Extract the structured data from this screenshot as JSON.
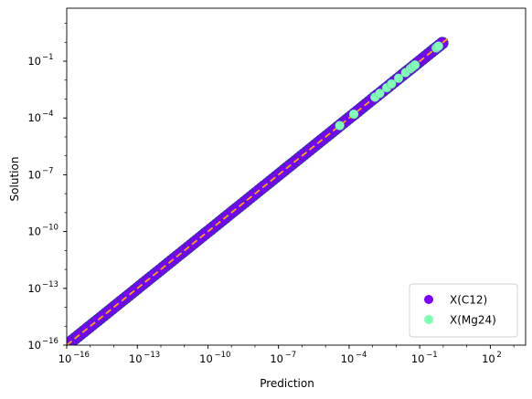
{
  "chart_data": {
    "type": "scatter",
    "xlabel": "Prediction",
    "ylabel": "Solution",
    "xscale": "log",
    "yscale": "log",
    "xlim_exp": [
      -16,
      3.5
    ],
    "ylim_exp": [
      -16,
      1.8
    ],
    "x_ticks": [
      {
        "exp": -16,
        "label": "−16"
      },
      {
        "exp": -13,
        "label": "−13"
      },
      {
        "exp": -10,
        "label": "−10"
      },
      {
        "exp": -7,
        "label": "−7"
      },
      {
        "exp": -4,
        "label": "−4"
      },
      {
        "exp": -1,
        "label": "−1"
      },
      {
        "exp": 2,
        "label": "2"
      }
    ],
    "y_ticks": [
      {
        "exp": -16,
        "label": "−16"
      },
      {
        "exp": -13,
        "label": "−13"
      },
      {
        "exp": -10,
        "label": "−10"
      },
      {
        "exp": -7,
        "label": "−7"
      },
      {
        "exp": -4,
        "label": "−4"
      },
      {
        "exp": -1,
        "label": "−1"
      }
    ],
    "tick_base": "10",
    "grid": false,
    "legend_position": "lower-right",
    "reference_line": {
      "style": "dashed",
      "color": "#ffa500",
      "from_exp": -16,
      "to_exp": 0.3
    },
    "series": [
      {
        "name": "X(C12)",
        "color": "#7f00ff",
        "x_exp_range": [
          -16,
          0.0
        ],
        "marker": "circle"
      },
      {
        "name": "X(Mg24)",
        "color": "#80ffb4",
        "marker": "circle",
        "points_exp": [
          [
            -4.4,
            -4.4
          ],
          [
            -3.8,
            -3.8
          ],
          [
            -2.9,
            -2.9
          ],
          [
            -2.7,
            -2.7
          ],
          [
            -2.4,
            -2.4
          ],
          [
            -2.2,
            -2.2
          ],
          [
            -1.9,
            -1.9
          ],
          [
            -1.6,
            -1.6
          ],
          [
            -1.4,
            -1.4
          ],
          [
            -1.3,
            -1.3
          ],
          [
            -1.2,
            -1.2
          ],
          [
            -0.3,
            -0.3
          ],
          [
            -0.25,
            -0.25
          ],
          [
            -0.2,
            -0.2
          ]
        ]
      }
    ]
  }
}
